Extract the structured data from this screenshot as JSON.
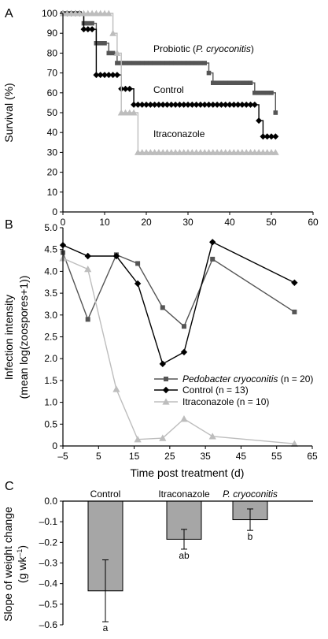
{
  "colors": {
    "probiotic": "#555555",
    "control": "#000000",
    "itraconazole": "#bdbdbd",
    "bar": "#a6a6a6"
  },
  "chart_data": [
    {
      "panel": "A",
      "type": "line",
      "step": true,
      "ylabel": "Survival (%)",
      "xlim": [
        0,
        60
      ],
      "ylim": [
        0,
        100
      ],
      "x_ticks": [
        "0",
        "10",
        "20",
        "30",
        "40",
        "50",
        "60"
      ],
      "y_ticks": [
        "0",
        "10",
        "20",
        "30",
        "40",
        "50",
        "60",
        "70",
        "80",
        "90",
        "100"
      ],
      "grid": false,
      "series": [
        {
          "name": "Probiotic (P. cryoconitis)",
          "label_prefix": "Probiotic (",
          "label_italic": "P. cryoconitis",
          "label_suffix": ")",
          "marker": "square",
          "color": "#555555",
          "x": [
            0,
            1,
            2,
            3,
            4,
            5,
            6,
            7,
            8,
            9,
            10,
            11,
            12,
            13,
            14,
            15,
            16,
            17,
            18,
            19,
            20,
            21,
            22,
            23,
            24,
            25,
            26,
            27,
            28,
            29,
            30,
            31,
            32,
            33,
            34,
            35,
            36,
            37,
            38,
            39,
            40,
            41,
            42,
            43,
            44,
            45,
            46,
            47,
            48,
            49,
            50,
            51
          ],
          "y": [
            100,
            100,
            100,
            100,
            100,
            95,
            95,
            95,
            85,
            85,
            85,
            80,
            80,
            75,
            75,
            75,
            75,
            75,
            75,
            75,
            75,
            75,
            75,
            75,
            75,
            75,
            75,
            75,
            75,
            75,
            75,
            75,
            75,
            75,
            75,
            70,
            65,
            65,
            65,
            65,
            65,
            65,
            65,
            65,
            65,
            65,
            60,
            60,
            60,
            60,
            60,
            50
          ]
        },
        {
          "name": "Control",
          "marker": "diamond",
          "color": "#000000",
          "x": [
            0,
            1,
            2,
            3,
            4,
            5,
            6,
            7,
            8,
            9,
            10,
            11,
            12,
            13,
            14,
            15,
            16,
            17,
            18,
            19,
            20,
            21,
            22,
            23,
            24,
            25,
            26,
            27,
            28,
            29,
            30,
            31,
            32,
            33,
            34,
            35,
            36,
            37,
            38,
            39,
            40,
            41,
            42,
            43,
            44,
            45,
            46,
            47,
            48,
            49,
            50,
            51
          ],
          "y": [
            100,
            100,
            100,
            100,
            100,
            92,
            92,
            92,
            69,
            69,
            69,
            69,
            69,
            69,
            62,
            62,
            62,
            54,
            54,
            54,
            54,
            54,
            54,
            54,
            54,
            54,
            54,
            54,
            54,
            54,
            54,
            54,
            54,
            54,
            54,
            54,
            54,
            54,
            54,
            54,
            54,
            54,
            54,
            54,
            54,
            54,
            54,
            46,
            38,
            38,
            38,
            38
          ]
        },
        {
          "name": "Itraconazole",
          "marker": "triangle",
          "color": "#bdbdbd",
          "x": [
            0,
            1,
            2,
            3,
            4,
            5,
            6,
            7,
            8,
            9,
            10,
            11,
            12,
            13,
            14,
            15,
            16,
            17,
            18,
            19,
            20,
            21,
            22,
            23,
            24,
            25,
            26,
            27,
            28,
            29,
            30,
            31,
            32,
            33,
            34,
            35,
            36,
            37,
            38,
            39,
            40,
            41,
            42,
            43,
            44,
            45,
            46,
            47,
            48,
            49,
            50,
            51
          ],
          "y": [
            100,
            100,
            100,
            100,
            100,
            100,
            100,
            100,
            100,
            100,
            100,
            100,
            90,
            80,
            50,
            50,
            50,
            50,
            30,
            30,
            30,
            30,
            30,
            30,
            30,
            30,
            30,
            30,
            30,
            30,
            30,
            30,
            30,
            30,
            30,
            30,
            30,
            30,
            30,
            30,
            30,
            30,
            30,
            30,
            30,
            30,
            30,
            30,
            30,
            30,
            30,
            30
          ]
        }
      ]
    },
    {
      "panel": "B",
      "type": "line",
      "xlabel": "Time post treatment (d)",
      "ylabel_line1": "Infection intensity",
      "ylabel_line2": "(mean log(zoospores+1))",
      "xlim": [
        -5,
        65
      ],
      "ylim": [
        0,
        5
      ],
      "x_ticks": [
        "–5",
        "5",
        "15",
        "25",
        "35",
        "45",
        "55",
        "65"
      ],
      "y_ticks": [
        "0",
        "0.5",
        "1.0",
        "1.5",
        "2.0",
        "2.5",
        "3.0",
        "3.5",
        "4.0",
        "4.5",
        "5.0"
      ],
      "legend_position": "bottom-right",
      "grid": false,
      "series": [
        {
          "name": "Pedobacter cryoconitis (n = 20)",
          "label_italic": "Pedobacter cryoconitis",
          "label_suffix": " (n = 20)",
          "marker": "square",
          "color": "#555555",
          "x": [
            -5,
            2,
            10,
            16,
            23,
            29,
            37,
            60
          ],
          "y": [
            4.43,
            2.9,
            4.38,
            4.18,
            3.17,
            2.74,
            4.28,
            3.07
          ]
        },
        {
          "name": "Control (n = 13)",
          "marker": "diamond",
          "color": "#000000",
          "x": [
            -5,
            2,
            10,
            16,
            23,
            29,
            37,
            60
          ],
          "y": [
            4.6,
            4.35,
            4.35,
            3.72,
            1.88,
            2.15,
            4.67,
            3.74
          ]
        },
        {
          "name": "Itraconazole (n = 10)",
          "marker": "triangle",
          "color": "#bdbdbd",
          "x": [
            -5,
            2,
            10,
            16,
            23,
            29,
            37,
            60
          ],
          "y": [
            4.3,
            4.05,
            1.3,
            0.15,
            0.18,
            0.62,
            0.22,
            0.05
          ]
        }
      ]
    },
    {
      "panel": "C",
      "type": "bar",
      "ylabel_line1": "Slope of weight change",
      "ylabel_line2_prefix": "(g wk",
      "ylabel_line2_sup": "–1",
      "ylabel_line2_suffix": ")",
      "categories": [
        "Control",
        "Itraconazole",
        "P. cryoconitis"
      ],
      "category_italic": [
        false,
        false,
        true
      ],
      "values": [
        -0.435,
        -0.185,
        -0.09
      ],
      "error": [
        0.15,
        0.048,
        0.052
      ],
      "significance": [
        "a",
        "ab",
        "b"
      ],
      "ylim": [
        -0.6,
        0.0
      ],
      "y_ticks": [
        "0.0",
        "–0.1",
        "–0.2",
        "–0.3",
        "–0.4",
        "–0.5",
        "–0.6"
      ],
      "grid": false
    }
  ]
}
